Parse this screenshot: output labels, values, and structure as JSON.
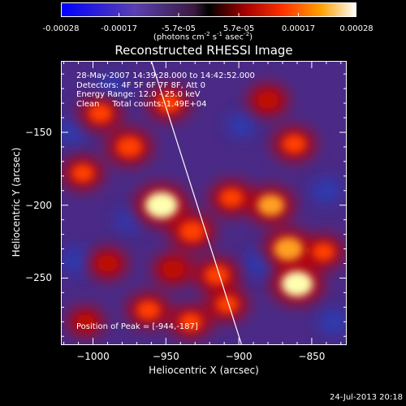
{
  "colorbar": {
    "ticks": [
      "-0.00028",
      "-0.00017",
      "-5.7e-05",
      "5.7e-05",
      "0.00017",
      "0.00028"
    ],
    "tick_values": [
      -0.00028,
      -0.00017,
      -5.7e-05,
      5.7e-05,
      0.00017,
      0.00028
    ],
    "range": [
      -0.00028,
      0.00028
    ],
    "units_prefix": "(photons cm",
    "units_sup1": "-2",
    "units_mid1": " s",
    "units_sup2": "-1",
    "units_mid2": " asec",
    "units_sup3": "-2",
    "units_suffix": ")"
  },
  "chart_data": {
    "type": "heatmap",
    "title": "Reconstructed RHESSI Image",
    "xlabel": "Heliocentric X (arcsec)",
    "ylabel": "Heliocentric Y (arcsec)",
    "xlim": [
      -1022,
      -826
    ],
    "ylim": [
      -296,
      -101
    ],
    "x_ticks": [
      -1000,
      -950,
      -900,
      -850
    ],
    "y_ticks": [
      -150,
      -200,
      -250
    ],
    "x_tick_labels": [
      "−1000",
      "−950",
      "−900",
      "−850"
    ],
    "y_tick_labels": [
      "−150",
      "−200",
      "−250"
    ],
    "limb_line": [
      [
        -960,
        -101
      ],
      [
        -898,
        -296
      ]
    ],
    "bright_sources": [
      {
        "x": -953,
        "y": -200,
        "level": 1.0
      },
      {
        "x": -1007,
        "y": -178,
        "level": 0.55
      },
      {
        "x": -995,
        "y": -137,
        "level": 0.6
      },
      {
        "x": -975,
        "y": -160,
        "level": 0.7
      },
      {
        "x": -948,
        "y": -130,
        "level": 0.6
      },
      {
        "x": -932,
        "y": -218,
        "level": 0.7
      },
      {
        "x": -905,
        "y": -195,
        "level": 0.6
      },
      {
        "x": -915,
        "y": -248,
        "level": 0.65
      },
      {
        "x": -945,
        "y": -244,
        "level": 0.5
      },
      {
        "x": -962,
        "y": -272,
        "level": 0.6
      },
      {
        "x": -933,
        "y": -280,
        "level": 0.55
      },
      {
        "x": -908,
        "y": -268,
        "level": 0.55
      },
      {
        "x": -878,
        "y": -200,
        "level": 0.75
      },
      {
        "x": -866,
        "y": -230,
        "level": 0.85
      },
      {
        "x": -860,
        "y": -254,
        "level": 0.95
      },
      {
        "x": -862,
        "y": -158,
        "level": 0.6
      },
      {
        "x": -880,
        "y": -128,
        "level": 0.5
      },
      {
        "x": -842,
        "y": -232,
        "level": 0.55
      },
      {
        "x": -990,
        "y": -240,
        "level": 0.45
      },
      {
        "x": -1005,
        "y": -280,
        "level": 0.35
      }
    ],
    "dark_sources": [
      {
        "x": -1010,
        "y": -238,
        "level": 0.6
      },
      {
        "x": -988,
        "y": -120,
        "level": 0.5
      },
      {
        "x": -885,
        "y": -240,
        "level": 0.6
      },
      {
        "x": -898,
        "y": -145,
        "level": 0.45
      },
      {
        "x": -840,
        "y": -190,
        "level": 0.5
      },
      {
        "x": -835,
        "y": -280,
        "level": 0.5
      },
      {
        "x": -975,
        "y": -210,
        "level": 0.4
      },
      {
        "x": -1015,
        "y": -150,
        "level": 0.45
      }
    ]
  },
  "info": {
    "line1": "28-May-2007 14:39:28.000 to 14:42:52.000",
    "line2": "Detectors: 4F 5F 6F 7F 8F, Att 0",
    "line3": "Energy Range: 12.0 - 25.0 keV",
    "line4": "Clean     Total counts: 1.49E+04"
  },
  "peak": {
    "label": "Position of Peak = [-944,-187]"
  },
  "timestamp": "24-Jul-2013 20:18",
  "colors": {
    "axis": "#ffffff",
    "limb": "#ffffff",
    "background": "#000000"
  }
}
